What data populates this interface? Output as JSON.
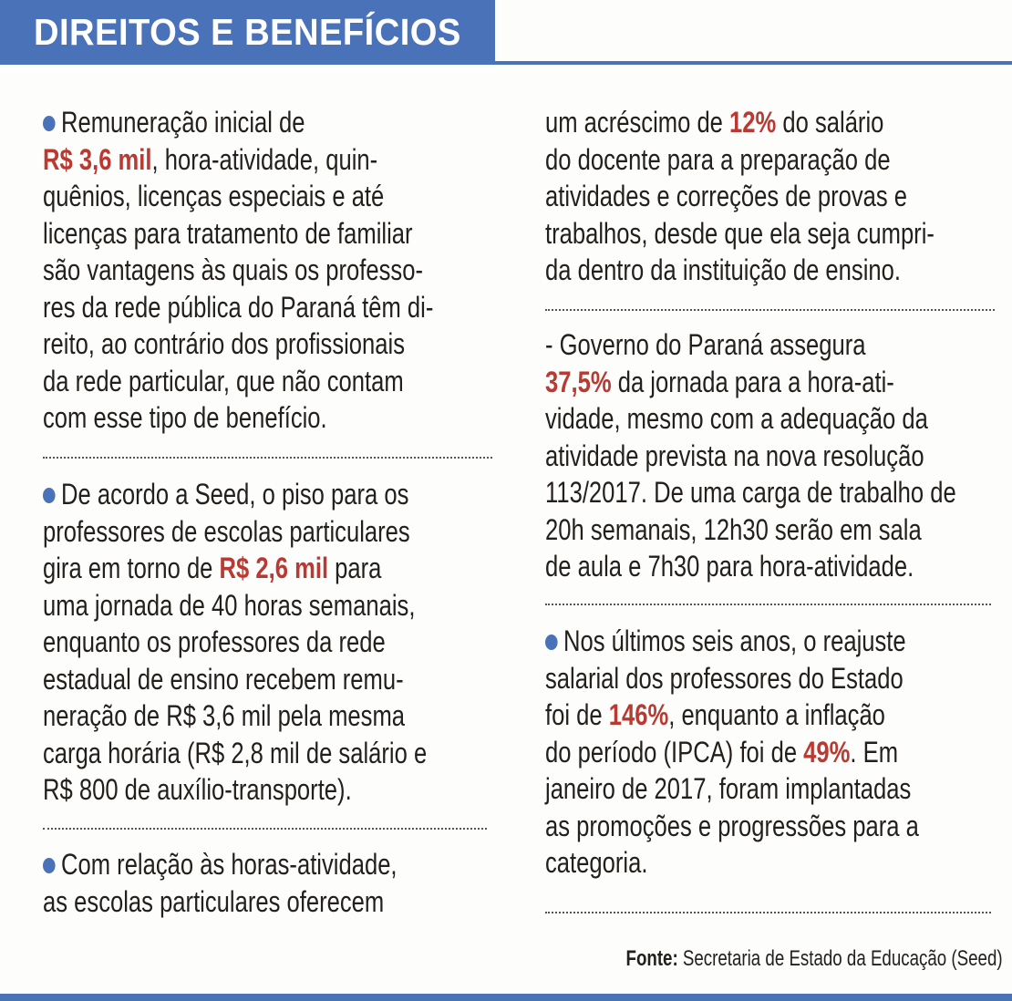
{
  "title": "DIREITOS E BENEFÍCIOS",
  "colors": {
    "accent": "#4a72b8",
    "highlight": "#b83a33"
  },
  "paragraphs": [
    {
      "bullet": true,
      "lines": [
        [
          {
            "t": "Remuneração inicial de"
          }
        ],
        [
          {
            "t": "R$ 3,6 mil",
            "hl": true
          },
          {
            "t": ", hora-atividade, quin-"
          }
        ],
        [
          {
            "t": "quênios, licenças especiais e até"
          }
        ],
        [
          {
            "t": "licenças para tratamento de familiar"
          }
        ],
        [
          {
            "t": "são vantagens às quais os professo-"
          }
        ],
        [
          {
            "t": "res da rede pública do Paraná têm di-"
          }
        ],
        [
          {
            "t": "reito, ao contrário dos profissionais"
          }
        ],
        [
          {
            "t": "da rede particular, que não contam"
          }
        ],
        [
          {
            "t": "com esse tipo de benefício."
          }
        ]
      ]
    },
    {
      "bullet": true,
      "lines": [
        [
          {
            "t": "De acordo a Seed, o piso para os"
          }
        ],
        [
          {
            "t": "professores de escolas particulares"
          }
        ],
        [
          {
            "t": "gira em torno de "
          },
          {
            "t": "R$ 2,6 mil",
            "hl": true
          },
          {
            "t": " para"
          }
        ],
        [
          {
            "t": "uma jornada de 40 horas semanais,"
          }
        ],
        [
          {
            "t": "enquanto os professores da rede"
          }
        ],
        [
          {
            "t": "estadual de ensino recebem remu-"
          }
        ],
        [
          {
            "t": "neração de R$ 3,6 mil pela mesma"
          }
        ],
        [
          {
            "t": "carga horária (R$ 2,8 mil de salário e"
          }
        ],
        [
          {
            "t": "R$ 800 de auxílio-transporte)."
          }
        ]
      ]
    },
    {
      "bullet": true,
      "lines": [
        [
          {
            "t": "Com relação às horas-atividade,"
          }
        ],
        [
          {
            "t": "as escolas particulares oferecem"
          }
        ]
      ]
    },
    {
      "bullet": false,
      "lines": [
        [
          {
            "t": "um acréscimo de "
          },
          {
            "t": "12%",
            "hl": true
          },
          {
            "t": " do salário"
          }
        ],
        [
          {
            "t": "do docente para a preparação de"
          }
        ],
        [
          {
            "t": "atividades e correções de provas e"
          }
        ],
        [
          {
            "t": "trabalhos, desde que ela seja cumpri-"
          }
        ],
        [
          {
            "t": "da dentro da instituição de ensino."
          }
        ]
      ]
    },
    {
      "bullet": false,
      "lines": [
        [
          {
            "t": "- Governo do Paraná assegura"
          }
        ],
        [
          {
            "t": "37,5%",
            "hl": true
          },
          {
            "t": " da jornada para a hora-ati-"
          }
        ],
        [
          {
            "t": "vidade, mesmo com a adequação da"
          }
        ],
        [
          {
            "t": "atividade prevista na nova resolução"
          }
        ],
        [
          {
            "t": "113/2017. De uma carga de trabalho de"
          }
        ],
        [
          {
            "t": "20h semanais, 12h30 serão em sala"
          }
        ],
        [
          {
            "t": "de aula e 7h30 para hora-atividade."
          }
        ]
      ]
    },
    {
      "bullet": true,
      "lines": [
        [
          {
            "t": "Nos últimos seis anos, o reajuste"
          }
        ],
        [
          {
            "t": "salarial dos professores do Estado"
          }
        ],
        [
          {
            "t": "foi de "
          },
          {
            "t": "146%",
            "hl": true
          },
          {
            "t": ", enquanto a inflação"
          }
        ],
        [
          {
            "t": "do período (IPCA) foi de "
          },
          {
            "t": "49%",
            "hl": true
          },
          {
            "t": ". Em"
          }
        ],
        [
          {
            "t": "janeiro de 2017, foram implantadas"
          }
        ],
        [
          {
            "t": "as promoções e progressões para a"
          }
        ],
        [
          {
            "t": "categoria."
          }
        ]
      ]
    }
  ],
  "source": {
    "label": "Fonte:",
    "text": " Secretaria de Estado da Educação (Seed)"
  }
}
